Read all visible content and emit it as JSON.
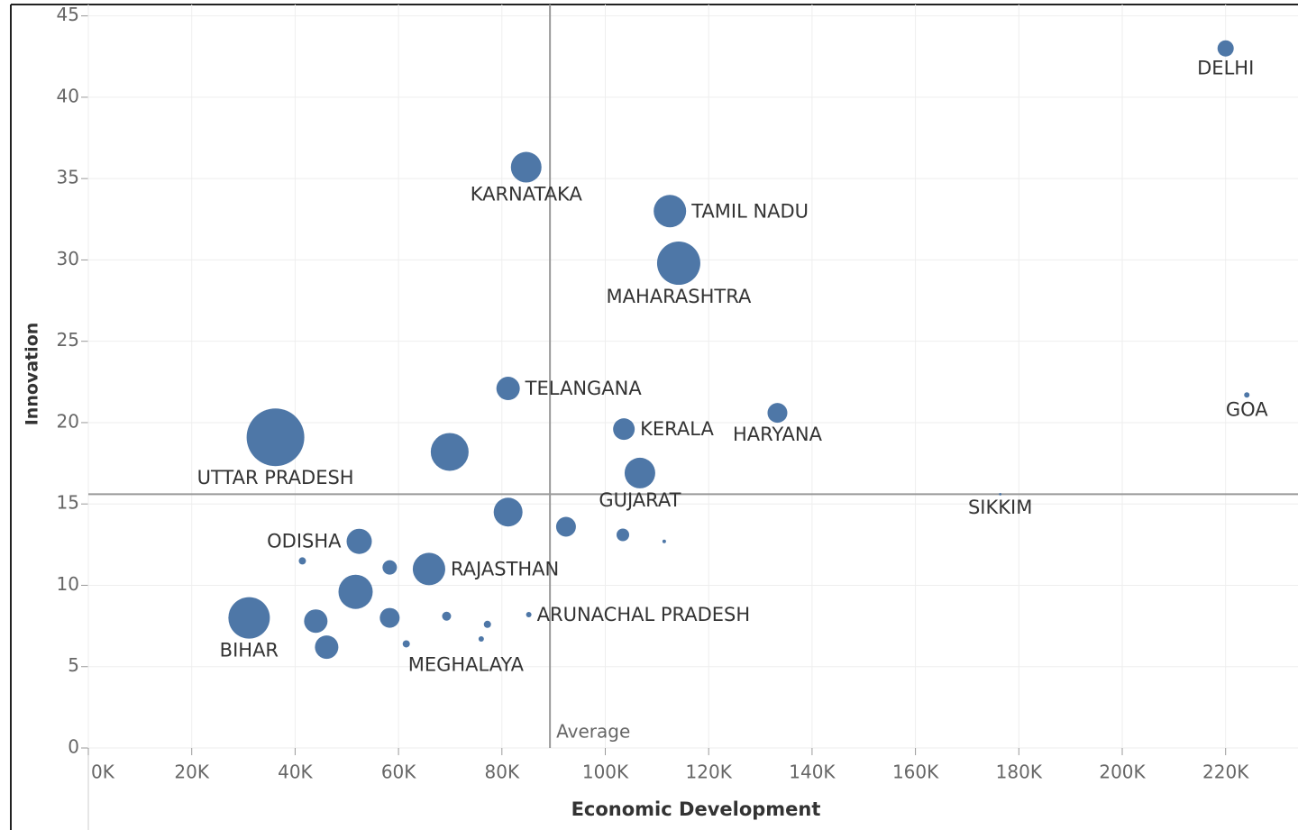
{
  "chart_data": {
    "type": "scatter",
    "x_label": "Economic Development",
    "y_label": "Innovation",
    "average_label": "Average",
    "color": "#4e77a7",
    "grid": true,
    "xlim": [
      0,
      234000
    ],
    "ylim": [
      0,
      45.7
    ],
    "xticks": [
      {
        "value": 0,
        "label": "0K"
      },
      {
        "value": 20000,
        "label": "20K"
      },
      {
        "value": 40000,
        "label": "40K"
      },
      {
        "value": 60000,
        "label": "60K"
      },
      {
        "value": 80000,
        "label": "80K"
      },
      {
        "value": 100000,
        "label": "100K"
      },
      {
        "value": 120000,
        "label": "120K"
      },
      {
        "value": 140000,
        "label": "140K"
      },
      {
        "value": 160000,
        "label": "160K"
      },
      {
        "value": 180000,
        "label": "180K"
      },
      {
        "value": 200000,
        "label": "200K"
      },
      {
        "value": 220000,
        "label": "220K"
      }
    ],
    "yticks": [
      0,
      5,
      10,
      15,
      20,
      25,
      30,
      35,
      40,
      45
    ],
    "average": {
      "x": 89300,
      "y": 15.6
    },
    "labels": [
      "DELHI",
      "KARNATAKA",
      "TAMIL NADU",
      "MAHARASHTRA",
      "TELANGANA",
      "KERALA",
      "HARYANA",
      "GOA",
      "UTTAR PRADESH",
      null,
      "GUJARAT",
      "SIKKIM",
      null,
      null,
      null,
      null,
      "ODISHA",
      null,
      null,
      "RAJASTHAN",
      null,
      "BIHAR",
      null,
      null,
      null,
      null,
      "ARUNACHAL PRADESH",
      null,
      "MEGHALAYA",
      null
    ],
    "x": [
      220000,
      84700,
      112500,
      114200,
      81200,
      103600,
      133300,
      224100,
      36200,
      69900,
      106700,
      176400,
      81200,
      92400,
      103400,
      111400,
      52400,
      41400,
      58300,
      65900,
      51700,
      31100,
      44000,
      58300,
      69300,
      77200,
      85200,
      76000,
      61500,
      46100
    ],
    "y": [
      43.0,
      35.7,
      33.0,
      29.8,
      22.1,
      19.6,
      20.6,
      21.7,
      19.1,
      18.2,
      16.9,
      15.6,
      14.5,
      13.6,
      13.1,
      12.7,
      12.7,
      11.5,
      11.1,
      11.0,
      9.6,
      8.0,
      7.8,
      8.0,
      8.1,
      7.6,
      8.2,
      6.7,
      6.4,
      6.2
    ],
    "sizes": [
      81,
      289,
      324,
      576,
      169,
      144,
      121,
      9,
      1024,
      441,
      289,
      2,
      256,
      121,
      49,
      4,
      196,
      16,
      64,
      324,
      361,
      529,
      169,
      121,
      25,
      16,
      9,
      9,
      16,
      169
    ]
  }
}
